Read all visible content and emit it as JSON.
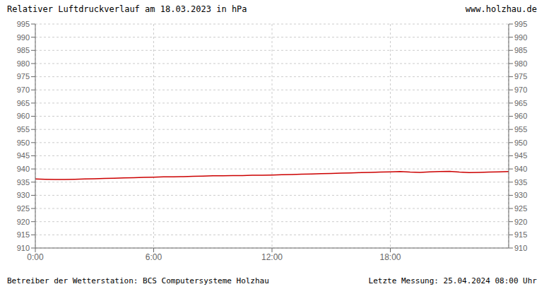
{
  "chart_data": {
    "type": "line",
    "title": "Relativer Luftdruckverlauf am 18.03.2023 in hPa",
    "annotations": [
      "www.holzhau.de",
      "Betreiber der Wetterstation: BCS Computersysteme Holzhau",
      "Letzte Messung: 25.04.2024 08:00 Uhr"
    ],
    "x": [
      0,
      0.5,
      1,
      1.5,
      2,
      2.5,
      3,
      3.5,
      4,
      4.5,
      5,
      5.5,
      6,
      6.5,
      7,
      7.5,
      8,
      8.5,
      9,
      9.5,
      10,
      10.5,
      11,
      11.5,
      12,
      12.5,
      13,
      13.5,
      14,
      14.5,
      15,
      15.5,
      16,
      16.5,
      17,
      17.5,
      18,
      18.5,
      19,
      19.5,
      20,
      20.5,
      21,
      21.5,
      22,
      22.5,
      23,
      23.5,
      24
    ],
    "values": [
      936.2,
      936.1,
      936.0,
      936.0,
      936.1,
      936.2,
      936.3,
      936.4,
      936.5,
      936.6,
      936.7,
      936.8,
      936.9,
      937.0,
      937.0,
      937.1,
      937.2,
      937.3,
      937.4,
      937.4,
      937.5,
      937.5,
      937.6,
      937.6,
      937.7,
      937.8,
      937.9,
      938.0,
      938.1,
      938.2,
      938.3,
      938.4,
      938.5,
      938.6,
      938.7,
      938.8,
      938.9,
      939.0,
      938.8,
      938.7,
      938.9,
      939.0,
      939.1,
      938.8,
      938.6,
      938.7,
      938.8,
      938.9,
      939.0
    ],
    "color": "#cc0000",
    "xlim": [
      0,
      24
    ],
    "xticks": [
      {
        "value": 0,
        "label": "0:00"
      },
      {
        "value": 6,
        "label": "6:00"
      },
      {
        "value": 12,
        "label": "12:00"
      },
      {
        "value": 18,
        "label": "18:00"
      }
    ],
    "ylim": [
      910,
      995
    ],
    "yticks": [
      910,
      915,
      920,
      925,
      930,
      935,
      940,
      945,
      950,
      955,
      960,
      965,
      970,
      975,
      980,
      985,
      990,
      995
    ],
    "grid": true
  }
}
